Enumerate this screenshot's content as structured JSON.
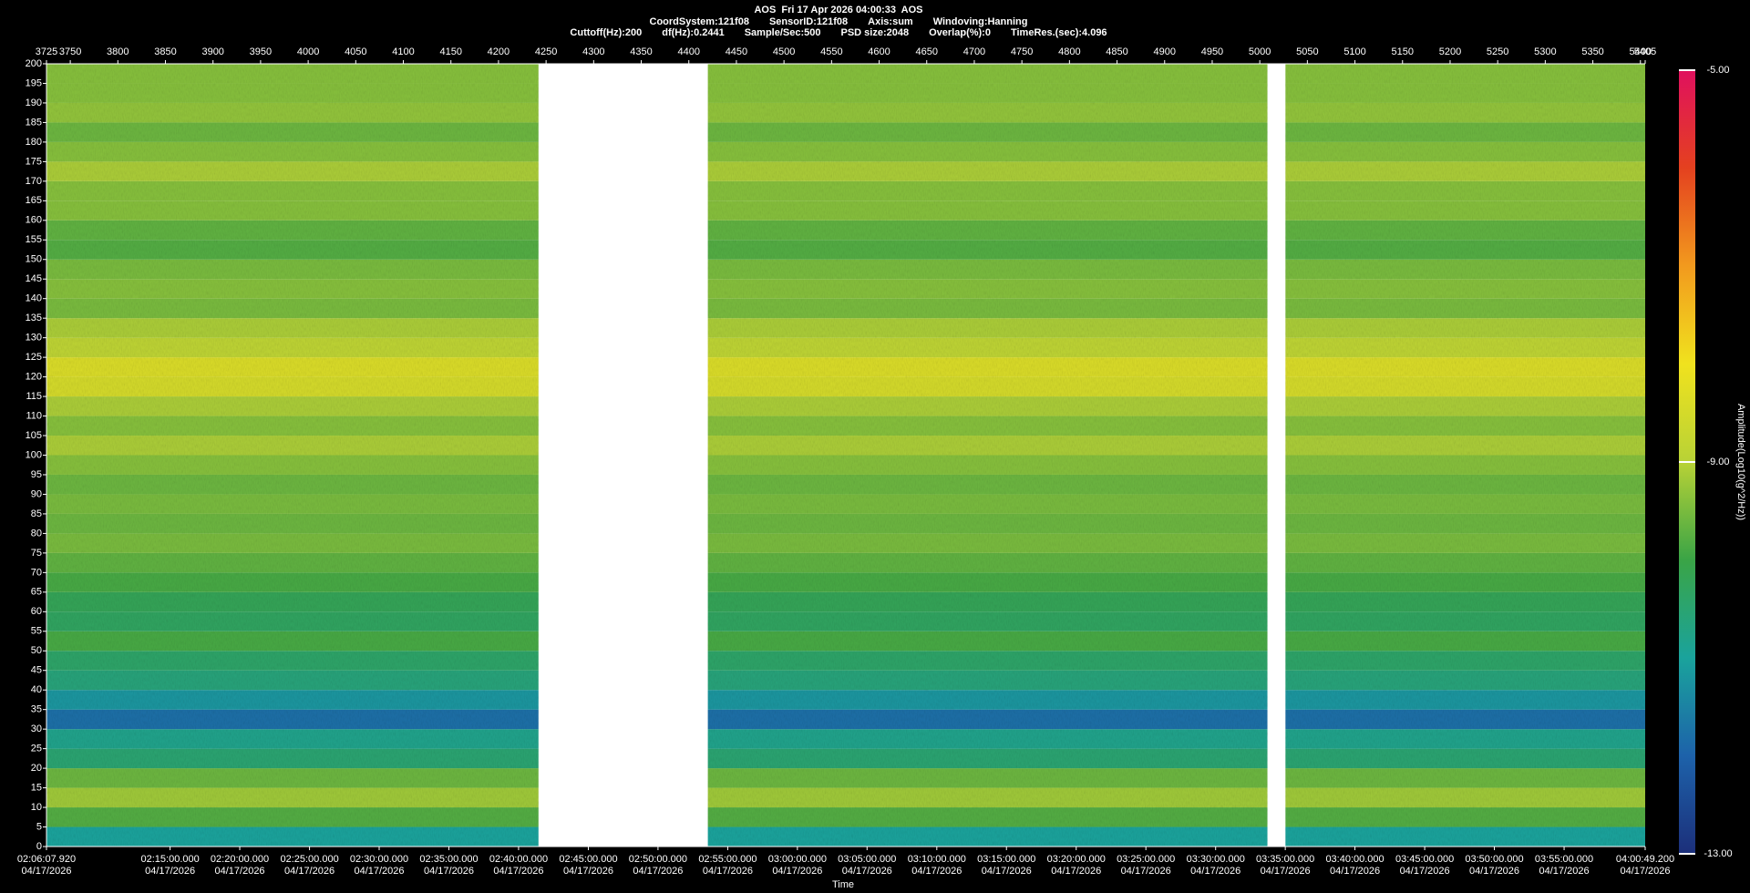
{
  "chart_data": {
    "type": "spectrogram",
    "title": "AOS  Fri 17 Apr 2026 04:00:33  AOS",
    "info": [
      [
        "CoordSystem:121f08",
        "SensorID:121f08",
        "Axis:sum",
        "Windoving:Hanning"
      ],
      [
        "Cuttoff(Hz):200",
        "df(Hz):0.2441",
        "Sample/Sec:500",
        "PSD size:2048",
        "Overlap(%):0",
        "TimeRes.(sec):4.096"
      ]
    ],
    "xlabel": "Time",
    "colorbar_label": "Amplitude(Log10(g^2/Hz))",
    "xlim": [
      3725,
      5405
    ],
    "xticks": [
      3725,
      3750,
      3800,
      3850,
      3900,
      3950,
      4000,
      4050,
      4100,
      4150,
      4200,
      4250,
      4300,
      4350,
      4400,
      4450,
      4500,
      4550,
      4600,
      4650,
      4700,
      4750,
      4800,
      4850,
      4900,
      4950,
      5000,
      5050,
      5100,
      5150,
      5200,
      5250,
      5300,
      5350,
      5400,
      5405
    ],
    "time_ticks": [
      {
        "value": 3725,
        "label": "02:06:07.920",
        "date": "04/17/2026"
      },
      {
        "value": 3854.9,
        "label": "02:15:00.000",
        "date": "04/17/2026"
      },
      {
        "value": 3928.1,
        "label": "02:20:00.000",
        "date": "04/17/2026"
      },
      {
        "value": 4001.4,
        "label": "02:25:00.000",
        "date": "04/17/2026"
      },
      {
        "value": 4074.6,
        "label": "02:30:00.000",
        "date": "04/17/2026"
      },
      {
        "value": 4147.9,
        "label": "02:35:00.000",
        "date": "04/17/2026"
      },
      {
        "value": 4221.1,
        "label": "02:40:00.000",
        "date": "04/17/2026"
      },
      {
        "value": 4294.4,
        "label": "02:45:00.000",
        "date": "04/17/2026"
      },
      {
        "value": 4367.6,
        "label": "02:50:00.000",
        "date": "04/17/2026"
      },
      {
        "value": 4440.9,
        "label": "02:55:00.000",
        "date": "04/17/2026"
      },
      {
        "value": 4514.1,
        "label": "03:00:00.000",
        "date": "04/17/2026"
      },
      {
        "value": 4587.3,
        "label": "03:05:00.000",
        "date": "04/17/2026"
      },
      {
        "value": 4660.6,
        "label": "03:10:00.000",
        "date": "04/17/2026"
      },
      {
        "value": 4733.8,
        "label": "03:15:00.000",
        "date": "04/17/2026"
      },
      {
        "value": 4807.1,
        "label": "03:20:00.000",
        "date": "04/17/2026"
      },
      {
        "value": 4880.3,
        "label": "03:25:00.000",
        "date": "04/17/2026"
      },
      {
        "value": 4953.6,
        "label": "03:30:00.000",
        "date": "04/17/2026"
      },
      {
        "value": 5026.8,
        "label": "03:35:00.000",
        "date": "04/17/2026"
      },
      {
        "value": 5100.0,
        "label": "03:40:00.000",
        "date": "04/17/2026"
      },
      {
        "value": 5173.3,
        "label": "03:45:00.000",
        "date": "04/17/2026"
      },
      {
        "value": 5246.5,
        "label": "03:50:00.000",
        "date": "04/17/2026"
      },
      {
        "value": 5319.8,
        "label": "03:55:00.000",
        "date": "04/17/2026"
      },
      {
        "value": 5405,
        "label": "04:00:49.200",
        "date": "04/17/2026"
      }
    ],
    "ylim": [
      0,
      200
    ],
    "yticks": [
      0,
      5,
      10,
      15,
      20,
      25,
      30,
      35,
      40,
      45,
      50,
      55,
      60,
      65,
      70,
      75,
      80,
      85,
      90,
      95,
      100,
      105,
      110,
      115,
      120,
      125,
      130,
      135,
      140,
      145,
      150,
      155,
      160,
      165,
      170,
      175,
      180,
      185,
      190,
      195,
      200
    ],
    "ybins": [
      0,
      5,
      10,
      15,
      20,
      25,
      30,
      35,
      40,
      45,
      50,
      55,
      60,
      65,
      70,
      75,
      80,
      85,
      90,
      95,
      100,
      105,
      110,
      115,
      120,
      125,
      130,
      135,
      140,
      145,
      150,
      155,
      160,
      165,
      170,
      175,
      180,
      185,
      190,
      195,
      200
    ],
    "clim": [
      -13,
      -5
    ],
    "cticks": [
      {
        "value": -5,
        "label": "-5.00"
      },
      {
        "value": -9,
        "label": "-9.00"
      },
      {
        "value": -13,
        "label": "-13.00"
      }
    ],
    "colorscale": [
      {
        "value": -13,
        "color": "#1c2f7a"
      },
      {
        "value": -12,
        "color": "#1d62aa"
      },
      {
        "value": -11,
        "color": "#1aa39c"
      },
      {
        "value": -10,
        "color": "#3aa446"
      },
      {
        "value": -9,
        "color": "#b8d236"
      },
      {
        "value": -8,
        "color": "#f0e21e"
      },
      {
        "value": -7,
        "color": "#f29a1e"
      },
      {
        "value": -6,
        "color": "#e4411f"
      },
      {
        "value": -5,
        "color": "#e0105e"
      }
    ],
    "series": [
      {
        "xrange": [
          3725,
          4242
        ],
        "values": [
          -11.0,
          -9.8,
          -9.2,
          -9.6,
          -10.5,
          -10.8,
          -11.8,
          -11.2,
          -10.6,
          -10.4,
          -9.9,
          -10.3,
          -10.2,
          -9.9,
          -9.7,
          -9.5,
          -9.6,
          -9.5,
          -9.6,
          -9.4,
          -9.1,
          -9.4,
          -9.1,
          -8.5,
          -8.4,
          -8.9,
          -9.1,
          -9.5,
          -9.4,
          -9.5,
          -9.8,
          -9.7,
          -9.4,
          -9.4,
          -9.1,
          -9.4,
          -9.6,
          -9.3,
          -9.4,
          -9.4
        ]
      },
      {
        "xrange": [
          4420,
          5008
        ],
        "values": [
          -11.0,
          -9.8,
          -9.2,
          -9.6,
          -10.5,
          -10.8,
          -11.8,
          -11.2,
          -10.6,
          -10.4,
          -9.9,
          -10.3,
          -10.2,
          -9.9,
          -9.7,
          -9.5,
          -9.6,
          -9.5,
          -9.6,
          -9.4,
          -9.1,
          -9.4,
          -9.1,
          -8.5,
          -8.4,
          -8.9,
          -9.1,
          -9.5,
          -9.4,
          -9.5,
          -9.8,
          -9.7,
          -9.4,
          -9.4,
          -9.1,
          -9.4,
          -9.6,
          -9.3,
          -9.4,
          -9.4
        ]
      },
      {
        "xrange": [
          5027,
          5405
        ],
        "values": [
          -11.0,
          -9.8,
          -9.2,
          -9.6,
          -10.5,
          -10.8,
          -11.8,
          -11.2,
          -10.6,
          -10.4,
          -9.9,
          -10.3,
          -10.2,
          -9.9,
          -9.7,
          -9.5,
          -9.6,
          -9.5,
          -9.6,
          -9.4,
          -9.1,
          -9.4,
          -9.1,
          -8.5,
          -8.4,
          -8.9,
          -9.1,
          -9.5,
          -9.4,
          -9.5,
          -9.8,
          -9.7,
          -9.4,
          -9.4,
          -9.1,
          -9.4,
          -9.6,
          -9.3,
          -9.4,
          -9.4
        ]
      }
    ]
  }
}
